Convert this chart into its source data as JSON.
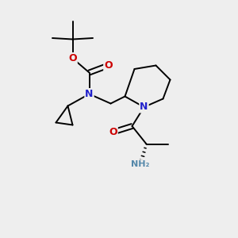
{
  "bg_color": "#eeeeee",
  "atom_colors": {
    "C": "#000000",
    "N": "#2222cc",
    "O": "#cc0000",
    "H": "#5588aa"
  },
  "figsize": [
    3.0,
    3.0
  ],
  "dpi": 100
}
